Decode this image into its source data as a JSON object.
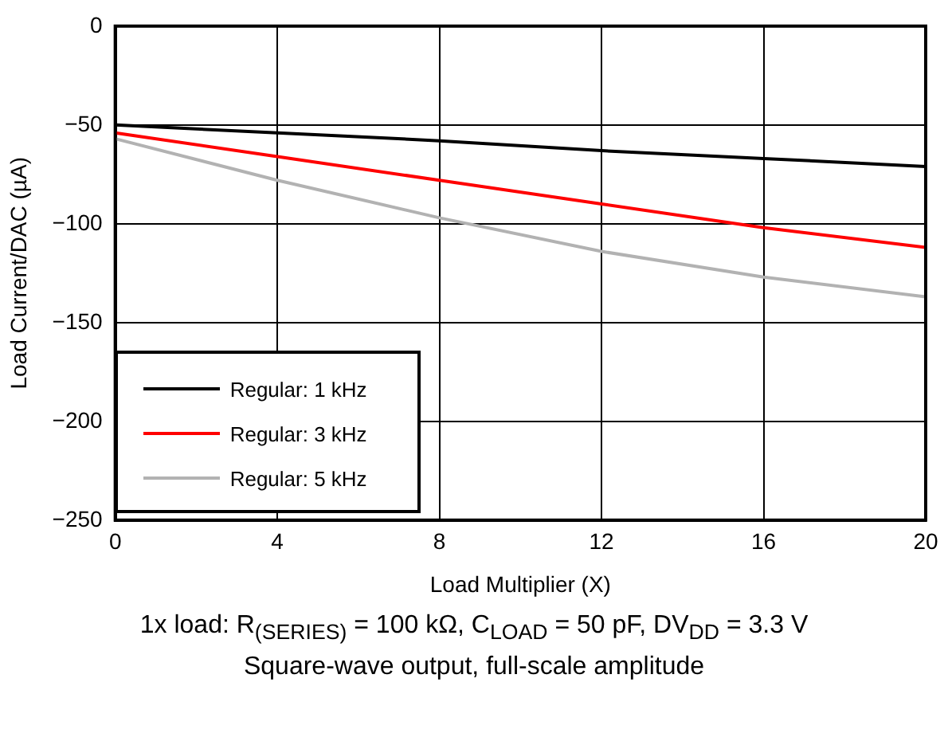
{
  "chart_data": {
    "type": "line",
    "xlabel": "Load Multiplier (X)",
    "ylabel": "Load Current/DAC (µA)",
    "x": [
      0,
      4,
      8,
      12,
      16,
      20
    ],
    "series": [
      {
        "name": "Regular: 1 kHz",
        "color": "#000000",
        "values": [
          -50,
          -54,
          -58,
          -63,
          -67,
          -71
        ]
      },
      {
        "name": "Regular: 3 kHz",
        "color": "#ff0000",
        "values": [
          -54,
          -66,
          -78,
          -90,
          -102,
          -112
        ]
      },
      {
        "name": "Regular: 5 kHz",
        "color": "#b2b2b2",
        "values": [
          -57,
          -78,
          -97,
          -114,
          -127,
          -137
        ]
      }
    ],
    "xlim": [
      0,
      20
    ],
    "xticks": [
      0,
      4,
      8,
      12,
      16,
      20
    ],
    "ylim": [
      -250,
      0
    ],
    "yticks": [
      -250,
      -200,
      -150,
      -100,
      -50,
      0
    ],
    "grid": true,
    "legend": "bottom left",
    "marker": "none",
    "line_style": "solid",
    "annotations": [
      "1x load: R$_{(SERIES)}$ = 100 kΩ, C$_{LOAD}$ = 50 pF, DV$_{DD}$ = 3.3 V",
      "Square-wave output, full-scale amplitude"
    ]
  }
}
